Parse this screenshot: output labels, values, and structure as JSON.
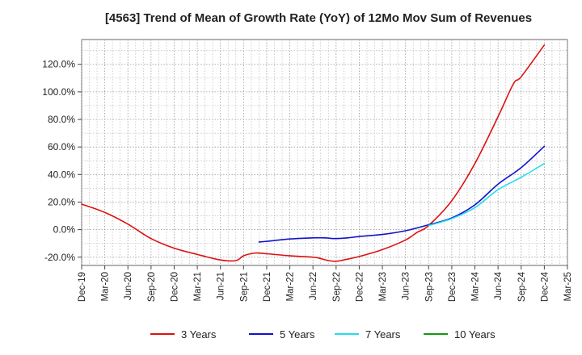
{
  "chart_data": {
    "type": "line",
    "title": "[4563]  Trend of Mean of Growth Rate (YoY) of 12Mo Mov Sum of Revenues",
    "xlabel": "",
    "ylabel": "",
    "x_ticks": [
      "Dec-19",
      "Mar-20",
      "Jun-20",
      "Sep-20",
      "Dec-20",
      "Mar-21",
      "Jun-21",
      "Sep-21",
      "Dec-21",
      "Mar-22",
      "Jun-22",
      "Sep-22",
      "Dec-22",
      "Mar-23",
      "Jun-23",
      "Sep-23",
      "Dec-23",
      "Mar-24",
      "Jun-24",
      "Sep-24",
      "Dec-24",
      "Mar-25"
    ],
    "y_ticks": [
      -20,
      0,
      20,
      40,
      60,
      80,
      100,
      120
    ],
    "y_tick_labels": [
      "-20.0%",
      "0.0%",
      "20.0%",
      "40.0%",
      "60.0%",
      "80.0%",
      "100.0%",
      "120.0%"
    ],
    "ylim": [
      -26,
      138
    ],
    "grid": true,
    "legend_position": "bottom",
    "series": [
      {
        "name": "3 Years",
        "color": "#dd1111",
        "points": [
          [
            0,
            18.5
          ],
          [
            1,
            12.5
          ],
          [
            2,
            4
          ],
          [
            3,
            -6.5
          ],
          [
            4,
            -13.5
          ],
          [
            5,
            -18
          ],
          [
            6,
            -22
          ],
          [
            6.67,
            -22.5
          ],
          [
            7,
            -19
          ],
          [
            7.5,
            -17
          ],
          [
            8,
            -17.5
          ],
          [
            9,
            -19
          ],
          [
            10,
            -20
          ],
          [
            10.33,
            -21
          ],
          [
            10.67,
            -22.5
          ],
          [
            11,
            -23
          ],
          [
            11.33,
            -22
          ],
          [
            12,
            -19.5
          ],
          [
            13,
            -14.5
          ],
          [
            14,
            -7.5
          ],
          [
            14.5,
            -2
          ],
          [
            15,
            3
          ],
          [
            16,
            21
          ],
          [
            17,
            48
          ],
          [
            18,
            82
          ],
          [
            18.67,
            106
          ],
          [
            19,
            111
          ],
          [
            20,
            134
          ]
        ]
      },
      {
        "name": "5 Years",
        "color": "#1111cc",
        "points": [
          [
            7.67,
            -9
          ],
          [
            8,
            -8.5
          ],
          [
            9,
            -6.8
          ],
          [
            10,
            -6
          ],
          [
            10.5,
            -6
          ],
          [
            11,
            -6.5
          ],
          [
            11.5,
            -6
          ],
          [
            12,
            -5
          ],
          [
            13,
            -3.5
          ],
          [
            14,
            -0.8
          ],
          [
            15,
            3.5
          ],
          [
            16,
            8.5
          ],
          [
            17,
            18
          ],
          [
            18,
            33
          ],
          [
            19,
            45
          ],
          [
            20,
            60.5
          ]
        ]
      },
      {
        "name": "7 Years",
        "color": "#22ddee",
        "points": [
          [
            15,
            3
          ],
          [
            16,
            8
          ],
          [
            17,
            16
          ],
          [
            18,
            29
          ],
          [
            19,
            38
          ],
          [
            20,
            48
          ]
        ]
      },
      {
        "name": "10 Years",
        "color": "#119911",
        "points": []
      }
    ]
  }
}
